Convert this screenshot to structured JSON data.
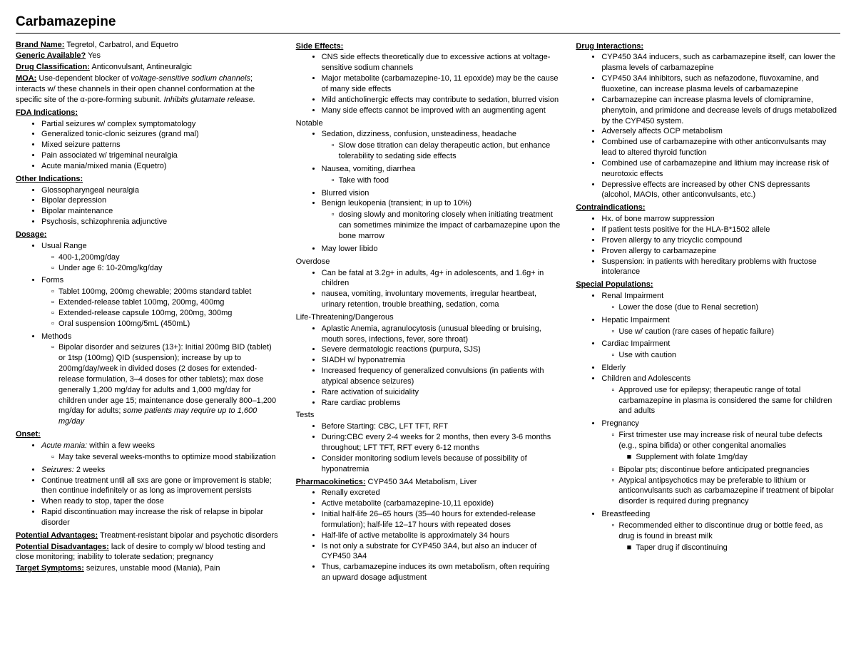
{
  "title": "Carbamazepine",
  "col1": {
    "brand_name_label": "Brand Name:",
    "brand_name": " Tegretol, Carbatrol, and Equetro",
    "generic_label": "Generic Available?",
    "generic": " Yes",
    "classification_label": "Drug Classification:",
    "classification": " Anticonvulsant, Antineuralgic",
    "moa_label": "MOA:",
    "moa_pre": " Use-dependent blocker of ",
    "moa_italic": "voltage-sensitive sodium channels",
    "moa_post": "; interacts w/ these channels in their open channel conformation at the specific site of the α-pore-forming subunit. ",
    "moa_italic2": "Inhibits glutamate release.",
    "fda_label": "FDA Indications:",
    "fda": [
      "Partial seizures w/ complex symptomatology",
      "Generalized tonic-clonic seizures (grand mal)",
      "Mixed seizure patterns",
      "Pain associated w/ trigeminal neuralgia",
      "Acute mania/mixed mania (Equetro)"
    ],
    "other_label": "Other Indications:",
    "other": [
      "Glossopharyngeal neuralgia",
      "Bipolar depression",
      "Bipolar maintenance",
      "Psychosis, schizophrenia adjunctive"
    ],
    "dosage_label": "Dosage:",
    "dosage_usual": "Usual Range",
    "dosage_usual_items": [
      "400-1,200mg/day",
      "Under age 6: 10-20mg/kg/day"
    ],
    "dosage_forms": "Forms",
    "dosage_forms_items": [
      "Tablet 100mg, 200mg chewable; 200ms standard tablet",
      "Extended-release tablet 100mg, 200mg, 400mg",
      "Extended-release capsule 100mg, 200mg, 300mg",
      "Oral suspension 100mg/5mL (450mL)"
    ],
    "dosage_methods": "Methods",
    "dosage_methods_text": "Bipolar disorder and seizures (13+): Initial 200mg BID (tablet) or 1tsp (100mg) QID (suspension); increase by up to 200mg/day/week in divided doses (2 doses for extended-release formulation, 3–4 doses for other tablets); max dose generally 1,200 mg/day for adults and 1,000 mg/day for children under age 15; maintenance dose generally 800–1,200 mg/day for adults; ",
    "dosage_methods_italic": "some patients may require up to 1,600 mg/day",
    "onset_label": "Onset:",
    "onset_acute_italic": "Acute mania:",
    "onset_acute": " within a few weeks",
    "onset_acute_sub": "May take several weeks-months to optimize mood stabilization",
    "onset_seizures_italic": "Seizures:",
    "onset_seizures": " 2 weeks",
    "onset_items": [
      "Continue treatment until all sxs are gone or improvement is stable; then continue indefinitely or as long as improvement persists",
      "When ready to stop, taper the dose",
      "Rapid discontinuation may increase the risk of relapse in bipolar disorder"
    ],
    "adv_label": "Potential Advantages:",
    "adv": " Treatment-resistant bipolar and psychotic disorders",
    "disadv_label": "Potential Disadvantages:",
    "disadv": " lack of desire to comply w/ blood testing and close monitoring; inability to tolerate sedation; pregnancy",
    "target_label": "Target Symptoms:",
    "target": " seizures, unstable mood (Mania), Pain"
  },
  "col2": {
    "se_label": "Side Effects:",
    "se": [
      "CNS side effects theoretically due to excessive actions at voltage-sensitive sodium channels",
      "Major metabolite (carbamazepine-10, 11 epoxide) may be the cause of many side effects",
      "Mild anticholinergic effects may contribute to sedation, blurred vision",
      " Many side effects cannot be improved with an augmenting agent"
    ],
    "notable_label": "Notable",
    "notable_1": "Sedation, dizziness, confusion, unsteadiness, headache",
    "notable_1_sub": "Slow dose titration can delay therapeutic action, but enhance tolerability to sedating side effects",
    "notable_2": "Nausea, vomiting, diarrhea",
    "notable_2_sub": "Take with food",
    "notable_3": "Blurred vision",
    "notable_4": "Benign leukopenia  (transient; in up to 10%)",
    "notable_4_sub": "dosing slowly and monitoring closely when initiating treatment can sometimes minimize the impact of carbamazepine upon the bone marrow",
    "notable_5": "May lower libido",
    "overdose_label": "Overdose",
    "overdose": [
      "Can be fatal at 3.2g+ in adults, 4g+ in adolescents, and 1.6g+ in children",
      "nausea, vomiting, involuntary movements, irregular heartbeat, urinary retention, trouble breathing, sedation, coma"
    ],
    "life_label": "Life-Threatening/Dangerous",
    "life": [
      "Aplastic Anemia, agranulocytosis (unusual bleeding or bruising, mouth sores, infections, fever, sore throat)",
      "Severe dermatologic reactions (purpura, SJS)",
      "SIADH w/ hyponatremia",
      "Increased frequency of generalized convulsions (in patients with atypical absence seizures)",
      "Rare activation of suicidality",
      "Rare cardiac problems"
    ],
    "tests_label": "Tests",
    "tests": [
      "Before Starting: CBC, LFT TFT, RFT",
      "During:CBC every 2-4 weeks for 2 months, then every 3-6 months throughout; LFT TFT, RFT every 6-12 months",
      "Consider monitoring sodium levels because of possibility of hyponatremia"
    ],
    "pk_label": "Pharmacokinetics:",
    "pk_inline": " CYP450 3A4 Metabolism, Liver",
    "pk": [
      "Renally excreted",
      "Active metabolite (carbamazepine-10,11 epoxide)",
      "Initial half-life 26–65 hours (35–40 hours for extended-release formulation); half-life 12–17 hours with repeated doses",
      "Half-life of active metabolite is approximately 34 hours",
      "Is not only a substrate for CYP450 3A4, but also an inducer of CYP450 3A4",
      "Thus, carbamazepine induces its own metabolism, often requiring an upward dosage adjustment"
    ]
  },
  "col3": {
    "di_label": "Drug Interactions:",
    "di": [
      "CYP450 3A4 inducers, such as carbamazepine itself, can lower the plasma levels of carbamazepine",
      "CYP450 3A4 inhibitors, such as nefazodone, fluvoxamine, and fluoxetine, can increase plasma levels of carbamazepine",
      "Carbamazepine can increase plasma levels of clomipramine, phenytoin, and primidone and decrease levels of drugs metabolized by the CYP450 system.",
      "Adversely affects OCP metabolism",
      "Combined use of carbamazepine with other anticonvulsants may lead to altered thyroid function",
      "Combined use of carbamazepine and lithium may increase risk of neurotoxic effects",
      "Depressive effects are increased by other CNS depressants (alcohol, MAOIs, other anticonvulsants, etc.)"
    ],
    "ci_label": "Contraindications:",
    "ci": [
      "Hx. of bone marrow suppression",
      "If patient tests positive for the HLA-B*1502 allele",
      "Proven allergy to any tricyclic compound",
      "Proven allergy to carbamazepine",
      "Suspension: in patients with hereditary problems with fructose intolerance"
    ],
    "sp_label": "Special Populations:",
    "sp_renal": "Renal Impairment",
    "sp_renal_sub": "Lower the dose (due to Renal secretion)",
    "sp_hepatic": "Hepatic Impairment",
    "sp_hepatic_sub": "Use w/ caution (rare cases of hepatic failure)",
    "sp_cardiac": "Cardiac Impairment",
    "sp_cardiac_sub": "Use with caution",
    "sp_elderly": "Elderly",
    "sp_children": "Children and Adolescents",
    "sp_children_sub": "Approved use for epilepsy; therapeutic range of total carbamazepine in plasma is considered the same for children and adults",
    "sp_preg": "Pregnancy",
    "sp_preg_1": "First trimester use may increase risk of neural tube defects (e.g., spina bifida) or other congenital anomalies",
    "sp_preg_1_sub": "Supplement with folate 1mg/day",
    "sp_preg_2": "Bipolar pts; discontinue before anticipated pregnancies",
    "sp_preg_3": "Atypical antipsychotics may be preferable to lithium or anticonvulsants such as carbamazepine if treatment of bipolar disorder is required during pregnancy",
    "sp_bf": "Breastfeeding",
    "sp_bf_1": "Recommended either to discontinue drug or bottle feed, as drug is found in breast milk",
    "sp_bf_1_sub": "Taper drug if discontinuing"
  }
}
